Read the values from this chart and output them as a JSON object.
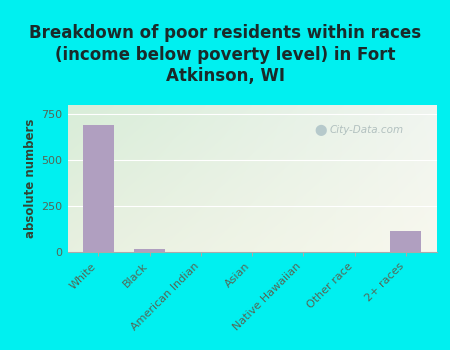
{
  "title": "Breakdown of poor residents within races\n(income below poverty level) in Fort\nAtkinson, WI",
  "categories": [
    "White",
    "Black",
    "American Indian",
    "Asian",
    "Native Hawaiian",
    "Other race",
    "2+ races"
  ],
  "values": [
    690,
    15,
    0,
    0,
    0,
    0,
    115
  ],
  "bar_color": "#b09fc0",
  "ylabel": "absolute numbers",
  "ylim": [
    0,
    800
  ],
  "yticks": [
    0,
    250,
    500,
    750
  ],
  "background_outer": "#00f0f0",
  "background_inner_topleft": "#d8edd8",
  "background_inner_bottomright": "#f5f5ea",
  "watermark": "City-Data.com",
  "title_fontsize": 12,
  "title_color": "#1a2a2a",
  "axis_label_fontsize": 8.5,
  "tick_fontsize": 8,
  "tick_color": "#556655",
  "ylabel_color": "#334433"
}
